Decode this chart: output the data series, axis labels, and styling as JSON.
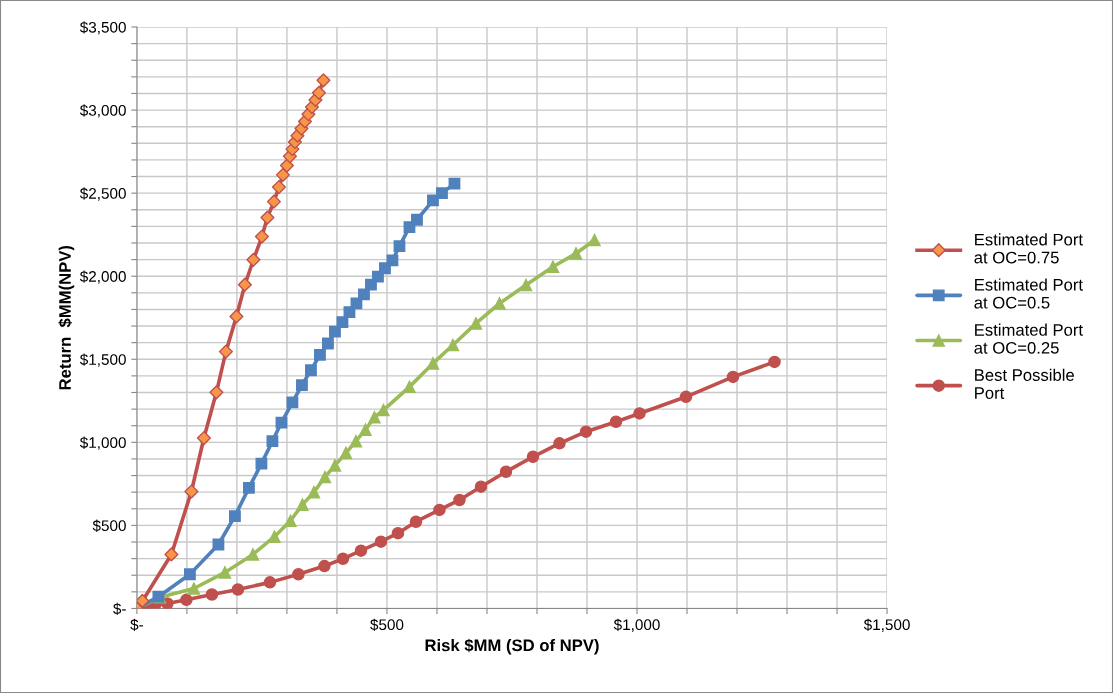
{
  "chart_data": {
    "type": "line",
    "xlabel": "Risk $MM (SD of NPV)",
    "ylabel": "Return  $MM(NPV)",
    "xlim": [
      0,
      1500
    ],
    "ylim": [
      0,
      3500
    ],
    "xticks": [
      {
        "value": 0,
        "label": "$-"
      },
      {
        "value": 100,
        "label": null
      },
      {
        "value": 200,
        "label": null
      },
      {
        "value": 300,
        "label": null
      },
      {
        "value": 400,
        "label": null
      },
      {
        "value": 500,
        "label": "$500"
      },
      {
        "value": 600,
        "label": null
      },
      {
        "value": 700,
        "label": null
      },
      {
        "value": 800,
        "label": null
      },
      {
        "value": 900,
        "label": null
      },
      {
        "value": 1000,
        "label": "$1,000"
      },
      {
        "value": 1100,
        "label": null
      },
      {
        "value": 1200,
        "label": null
      },
      {
        "value": 1300,
        "label": null
      },
      {
        "value": 1400,
        "label": null
      },
      {
        "value": 1500,
        "label": "$1,500"
      }
    ],
    "yticks": [
      {
        "value": 0,
        "label": "$-"
      },
      {
        "value": 100,
        "label": null
      },
      {
        "value": 200,
        "label": null
      },
      {
        "value": 300,
        "label": null
      },
      {
        "value": 400,
        "label": null
      },
      {
        "value": 500,
        "label": "$500"
      },
      {
        "value": 600,
        "label": null
      },
      {
        "value": 700,
        "label": null
      },
      {
        "value": 800,
        "label": null
      },
      {
        "value": 900,
        "label": null
      },
      {
        "value": 1000,
        "label": "$1,000"
      },
      {
        "value": 1100,
        "label": null
      },
      {
        "value": 1200,
        "label": null
      },
      {
        "value": 1300,
        "label": null
      },
      {
        "value": 1400,
        "label": null
      },
      {
        "value": 1500,
        "label": "$1,500"
      },
      {
        "value": 1600,
        "label": null
      },
      {
        "value": 1700,
        "label": null
      },
      {
        "value": 1800,
        "label": null
      },
      {
        "value": 1900,
        "label": null
      },
      {
        "value": 2000,
        "label": "$2,000"
      },
      {
        "value": 2100,
        "label": null
      },
      {
        "value": 2200,
        "label": null
      },
      {
        "value": 2300,
        "label": null
      },
      {
        "value": 2400,
        "label": null
      },
      {
        "value": 2500,
        "label": "$2,500"
      },
      {
        "value": 2600,
        "label": null
      },
      {
        "value": 2700,
        "label": null
      },
      {
        "value": 2800,
        "label": null
      },
      {
        "value": 2900,
        "label": null
      },
      {
        "value": 3000,
        "label": "$3,000"
      },
      {
        "value": 3100,
        "label": null
      },
      {
        "value": 3200,
        "label": null
      },
      {
        "value": 3300,
        "label": null
      },
      {
        "value": 3400,
        "label": null
      },
      {
        "value": 3500,
        "label": "$3,500"
      }
    ],
    "grid": true,
    "legend": "right",
    "line_style": "solid",
    "series": [
      {
        "name": "Estimated Port at OC=0.75",
        "color": "#c0504d",
        "colors": [
          "#f79646",
          "#f79646",
          "#f79646",
          "#f79646",
          "#f79646",
          "#f79646",
          "#f79646",
          "#f79646",
          "#f79646",
          "#f79646",
          "#f79646",
          "#f79646",
          "#f79646",
          "#f79646",
          "#f79646",
          "#f79646",
          "#f79646",
          "#f79646",
          "#f79646",
          "#f79646",
          "#f79646",
          "#f79646",
          "#f79646",
          "#f79646",
          "#f79646",
          "#f79646",
          "#f79646"
        ],
        "marker": "diamond",
        "x": [
          0,
          11,
          69,
          109,
          134,
          159,
          178,
          199,
          216,
          233,
          250,
          261,
          274,
          284,
          292,
          300,
          306,
          311,
          316,
          321,
          329,
          336,
          343,
          350,
          357,
          364,
          373
        ],
        "values": [
          0,
          45,
          325,
          704,
          1026,
          1301,
          1546,
          1758,
          1949,
          2099,
          2239,
          2353,
          2449,
          2537,
          2610,
          2666,
          2722,
          2765,
          2808,
          2846,
          2889,
          2932,
          2975,
          3018,
          3061,
          3104,
          3179
        ]
      },
      {
        "name": "Estimated Port at OC=0.5",
        "color": "#4f81bd",
        "marker": "square",
        "x": [
          0,
          43,
          106,
          163,
          196,
          224,
          249,
          271,
          289,
          311,
          330,
          348,
          366,
          382,
          396,
          411,
          425,
          439,
          454,
          468,
          482,
          496,
          511,
          525,
          545,
          560,
          592,
          610,
          635
        ],
        "values": [
          0,
          71,
          206,
          385,
          556,
          726,
          872,
          1007,
          1119,
          1241,
          1344,
          1434,
          1527,
          1595,
          1666,
          1724,
          1784,
          1837,
          1891,
          1949,
          1998,
          2048,
          2095,
          2181,
          2295,
          2340,
          2456,
          2500,
          2557
        ]
      },
      {
        "name": "Estimated Port at OC=0.25",
        "color": "#9bbb59",
        "marker": "triangle",
        "x": [
          0,
          46,
          114,
          176,
          232,
          275,
          307,
          331,
          354,
          376,
          396,
          418,
          438,
          457,
          475,
          493,
          545,
          592,
          632,
          678,
          725,
          778,
          832,
          878,
          915
        ],
        "values": [
          0,
          67,
          120,
          217,
          325,
          432,
          528,
          625,
          700,
          791,
          861,
          936,
          1007,
          1076,
          1151,
          1194,
          1334,
          1475,
          1586,
          1716,
          1836,
          1947,
          2057,
          2137,
          2218
        ]
      },
      {
        "name": "Best Possible Port",
        "color": "#c0504d",
        "marker": "circle",
        "x": [
          0,
          18,
          36,
          61,
          99,
          150,
          202,
          266,
          323,
          375,
          412,
          448,
          488,
          522,
          558,
          605,
          645,
          688,
          738,
          792,
          845,
          898,
          958,
          1005,
          1098,
          1192,
          1275
        ],
        "values": [
          0,
          13,
          19,
          30,
          52,
          84,
          114,
          157,
          206,
          255,
          299,
          348,
          402,
          453,
          522,
          593,
          653,
          733,
          823,
          913,
          994,
          1064,
          1124,
          1174,
          1274,
          1394,
          1484
        ]
      }
    ]
  }
}
